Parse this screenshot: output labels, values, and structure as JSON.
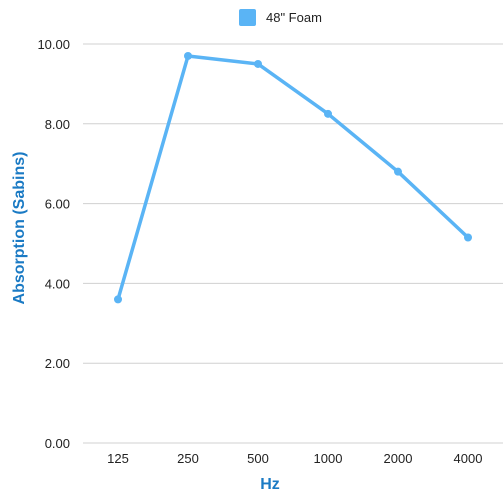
{
  "chart_data": {
    "type": "line",
    "categories": [
      "125",
      "250",
      "500",
      "1000",
      "2000",
      "4000"
    ],
    "series": [
      {
        "name": "48\" Foam",
        "values": [
          3.6,
          9.7,
          9.5,
          8.25,
          6.8,
          5.15
        ],
        "color": "#5ab4f5"
      }
    ],
    "xlabel": "Hz",
    "ylabel": "Absorption (Sabins)",
    "ylim": [
      0,
      10
    ],
    "yticks": [
      "0.00",
      "2.00",
      "4.00",
      "6.00",
      "8.00",
      "10.00"
    ],
    "grid": true,
    "legend_position": "top-center",
    "axis_title_color": "#1a7ac4",
    "grid_color": "#d0d0d0"
  }
}
